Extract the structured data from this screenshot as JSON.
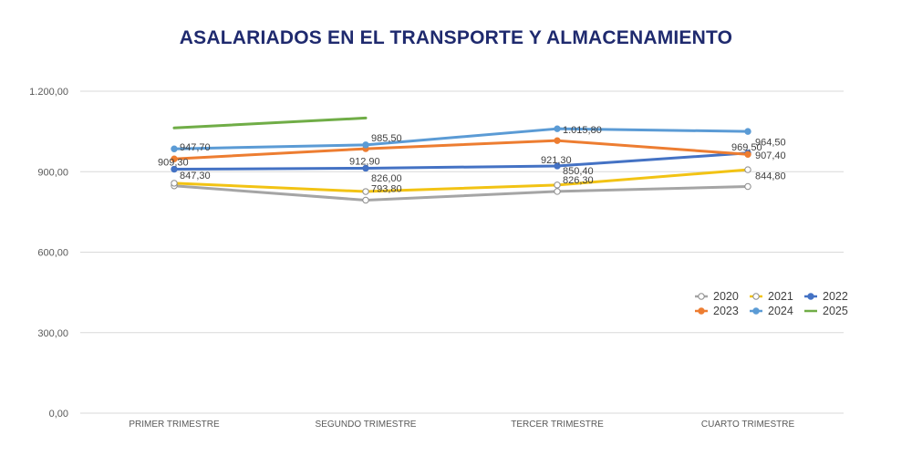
{
  "chart_data": {
    "type": "line",
    "title": "ASALARIADOS EN EL TRANSPORTE Y ALMACENAMIENTO",
    "title_color": "#1f2a6e",
    "categories": [
      "PRIMER TRIMESTRE",
      "SEGUNDO TRIMESTRE",
      "TERCER TRIMESTRE",
      "CUARTO TRIMESTRE"
    ],
    "ylim": [
      0,
      1200
    ],
    "yticks": [
      {
        "value": 0,
        "label": "0,00"
      },
      {
        "value": 300,
        "label": "300,00"
      },
      {
        "value": 600,
        "label": "600,00"
      },
      {
        "value": 900,
        "label": "900,00"
      },
      {
        "value": 1200,
        "label": "1.200,00"
      }
    ],
    "grid": true,
    "legend_position": "bottom-right",
    "series": [
      {
        "name": "2020",
        "color": "#a5a5a5",
        "marker": "open",
        "values": [
          847.3,
          793.8,
          826.3,
          844.8
        ],
        "labels": [
          "847,30",
          "793,80",
          "826,30",
          "844,80"
        ]
      },
      {
        "name": "2021",
        "color": "#f2c314",
        "marker": "open",
        "values": [
          857.0,
          826.0,
          850.4,
          907.4
        ],
        "labels": [
          null,
          "826,00",
          "850,40",
          "907,40"
        ]
      },
      {
        "name": "2022",
        "color": "#4472c4",
        "marker": "filled",
        "values": [
          909.3,
          912.9,
          921.3,
          969.5
        ],
        "labels": [
          "909,30",
          "912,90",
          "921,30",
          "969,50"
        ]
      },
      {
        "name": "2023",
        "color": "#ed7d31",
        "marker": "filled",
        "values": [
          947.7,
          985.5,
          1015.8,
          964.5
        ],
        "labels": [
          "947,70",
          "985,50",
          "1.015,80",
          "964,50"
        ]
      },
      {
        "name": "2024",
        "color": "#5b9bd5",
        "marker": "filled",
        "values": [
          985.0,
          1000.0,
          1060.0,
          1050.0
        ],
        "labels": [
          null,
          null,
          null,
          null
        ]
      },
      {
        "name": "2025",
        "color": "#70ad47",
        "marker": "none",
        "values": [
          1063.0,
          1100.0,
          null,
          null
        ],
        "labels": [
          null,
          null,
          null,
          null
        ]
      }
    ]
  }
}
